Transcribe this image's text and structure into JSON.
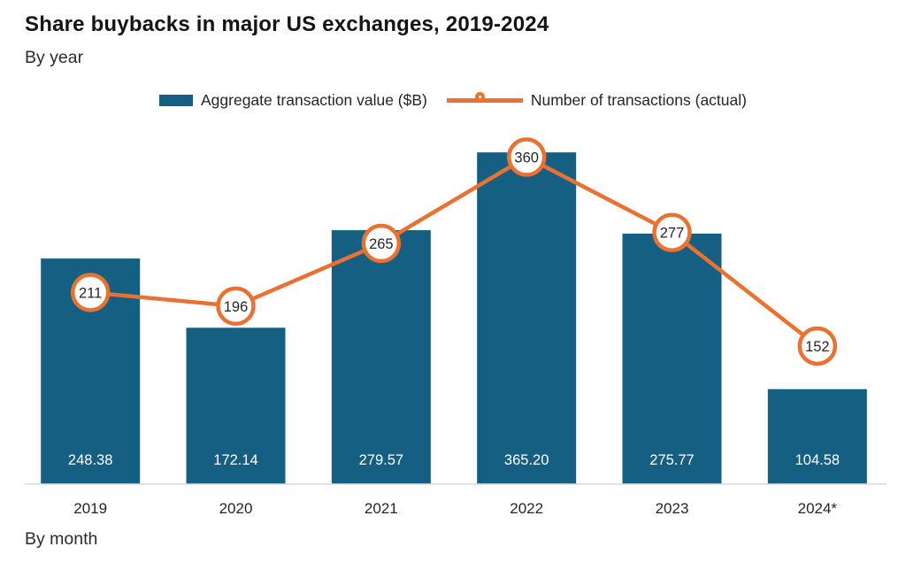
{
  "header": {
    "title": "Share buybacks in major US exchanges, 2019-2024",
    "subtitle": "By year"
  },
  "footer": {
    "label": "By month"
  },
  "chart_data": {
    "type": "bar",
    "subtype": "bar+line combo",
    "categories": [
      "2019",
      "2020",
      "2021",
      "2022",
      "2023",
      "2024*"
    ],
    "series": [
      {
        "name": "Aggregate transaction value ($B)",
        "type": "bar",
        "color": "#156082",
        "values": [
          248.38,
          172.14,
          279.57,
          365.2,
          275.77,
          104.58
        ],
        "value_labels": [
          "248.38",
          "172.14",
          "279.57",
          "365.20",
          "275.77",
          "104.58"
        ]
      },
      {
        "name": "Number of transactions (actual)",
        "type": "line",
        "color": "#E97132",
        "marker": "circle-with-value",
        "values": [
          211,
          196,
          265,
          360,
          277,
          152
        ],
        "value_labels": [
          "211",
          "196",
          "265",
          "360",
          "277",
          "152"
        ]
      }
    ],
    "title": "Share buybacks in major US exchanges, 2019-2024",
    "xlabel": "",
    "ylabel": "",
    "ylim": [
      0,
      380
    ],
    "grid": false,
    "legend_position": "top",
    "axis_line_color": "#d9d9d9",
    "bar_label_position": "inside-bottom"
  }
}
